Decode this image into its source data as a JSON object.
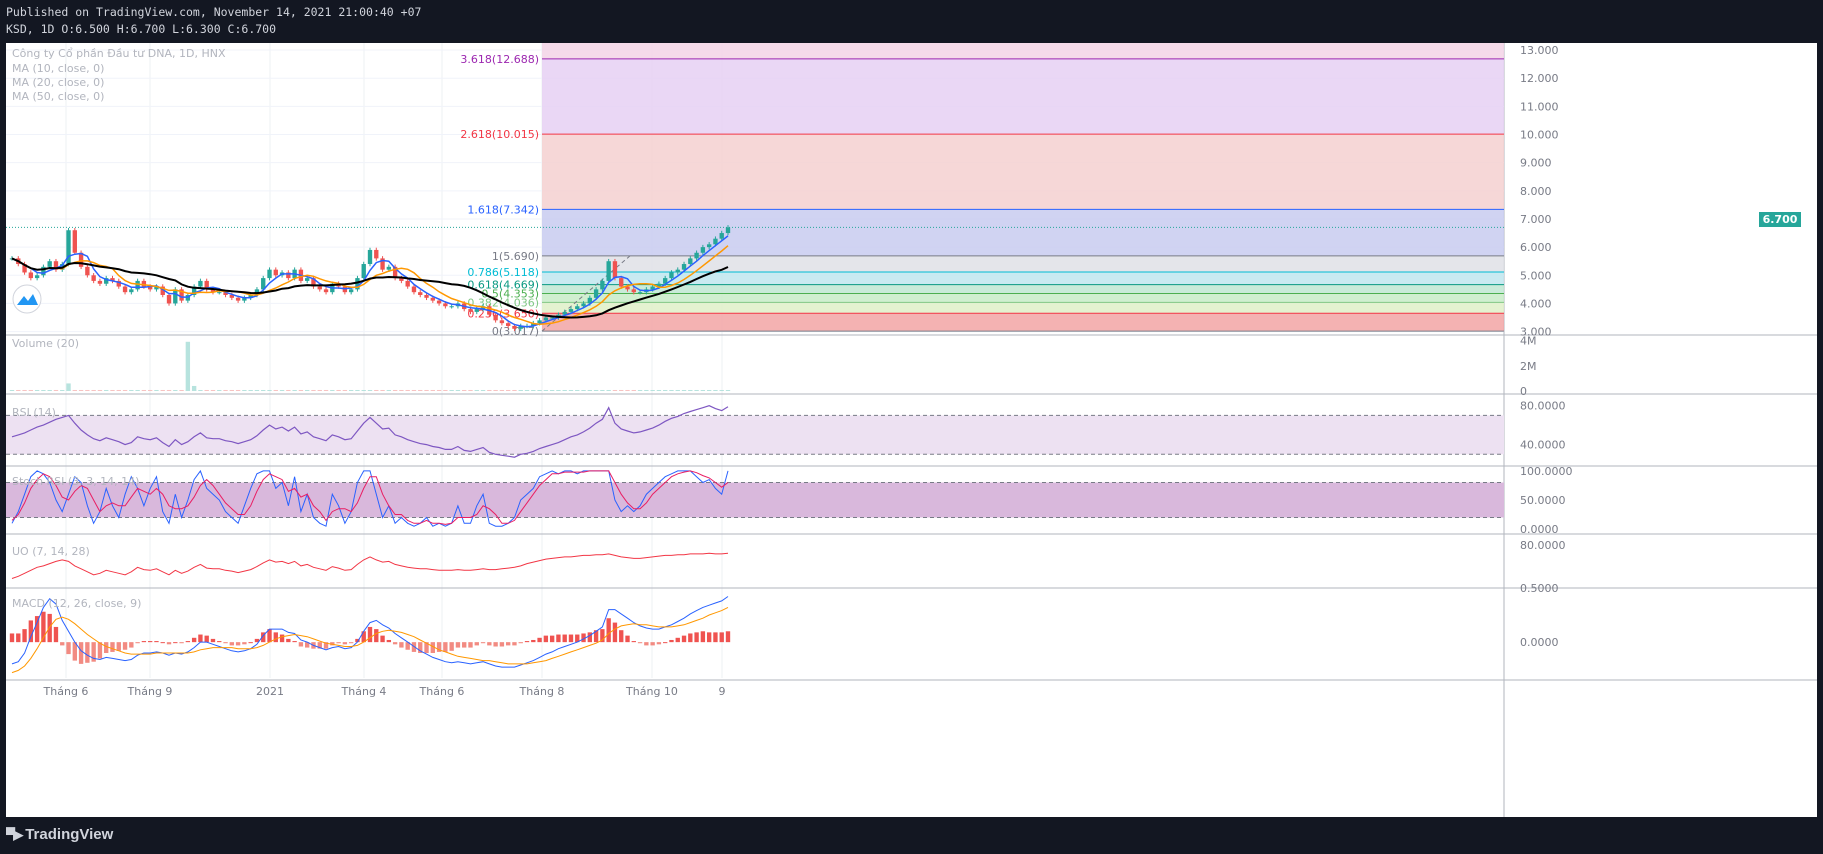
{
  "header": {
    "published": "Published on TradingView.com, November 14, 2021 21:00:40 +07",
    "ohlc": "KSD, 1D O:6.500 H:6.700 L:6.300 C:6.700"
  },
  "branding": {
    "label": "TradingView",
    "icon": "tradingview-logo-icon"
  },
  "colors": {
    "background": "#131722",
    "chart_bg": "#ffffff",
    "up": "#26a69a",
    "down": "#ef5350",
    "ma10": "#2962ff",
    "ma20": "#ff9800",
    "ma50": "#000000",
    "rsi": "#7e57c2",
    "macd": "#2962ff",
    "signal": "#ff9800",
    "uo": "#f23645"
  },
  "price_pane": {
    "legend": [
      "Công ty Cổ phần Đầu tư DNA, 1D, HNX",
      "MA (10, close, 0)",
      "MA (20, close, 0)",
      "MA (50, close, 0)"
    ],
    "last_price_label": "6.700"
  },
  "volume_pane": {
    "legend": "Volume (20)"
  },
  "rsi_pane": {
    "legend": "RSI (14)"
  },
  "stoch_pane": {
    "legend": "Stoch RSI (3, 3, 14, 14)"
  },
  "uo_pane": {
    "legend": "UO (7, 14, 28)"
  },
  "macd_pane": {
    "legend": "MACD (12, 26, close, 9)"
  },
  "chart_data": {
    "type": "candlestick",
    "symbol": "KSD",
    "interval": "1D",
    "x_ticks": [
      "Tháng 6",
      "Tháng 9",
      "2021",
      "Tháng 4",
      "Tháng 6",
      "Tháng 8",
      "Tháng 10",
      "9"
    ],
    "price_axis": [
      "13.000",
      "12.000",
      "11.000",
      "10.000",
      "9.000",
      "8.000",
      "7.000",
      "6.000",
      "5.000",
      "4.000",
      "3.000"
    ],
    "ylim": [
      2.95,
      13.25
    ],
    "close_series": [
      5.6,
      5.4,
      5.1,
      4.9,
      5.0,
      5.3,
      5.5,
      5.2,
      5.4,
      6.6,
      5.8,
      5.3,
      5.0,
      4.8,
      4.7,
      4.9,
      4.8,
      4.6,
      4.4,
      4.5,
      4.8,
      4.6,
      4.5,
      4.6,
      4.3,
      4.0,
      4.5,
      4.1,
      4.3,
      4.6,
      4.8,
      4.5,
      4.4,
      4.4,
      4.3,
      4.2,
      4.1,
      4.2,
      4.3,
      4.5,
      4.9,
      5.2,
      5.0,
      5.1,
      4.9,
      5.2,
      4.8,
      4.9,
      4.6,
      4.5,
      4.4,
      4.7,
      4.6,
      4.4,
      4.5,
      4.9,
      5.4,
      5.9,
      5.6,
      5.2,
      5.3,
      4.9,
      4.8,
      4.6,
      4.4,
      4.3,
      4.2,
      4.1,
      4.0,
      3.9,
      3.9,
      4.0,
      3.8,
      3.7,
      3.8,
      3.9,
      3.6,
      3.4,
      3.3,
      3.2,
      3.1,
      3.2,
      3.2,
      3.3,
      3.4,
      3.5,
      3.5,
      3.6,
      3.7,
      3.8,
      3.9,
      4.0,
      4.2,
      4.5,
      4.8,
      5.5,
      4.9,
      4.6,
      4.5,
      4.4,
      4.4,
      4.5,
      4.6,
      4.7,
      4.9,
      5.1,
      5.2,
      5.4,
      5.6,
      5.8,
      6.0,
      6.1,
      6.3,
      6.5,
      6.7
    ],
    "fibonacci": {
      "levels": [
        {
          "ratio": "0",
          "label": "0(3.017)",
          "price": 3.017,
          "line": "#787b86",
          "fill": "#f2a5a5"
        },
        {
          "ratio": "0.236",
          "label": "0.236(3.650)",
          "price": 3.65,
          "line": "#f23645",
          "fill": "#dff0c8"
        },
        {
          "ratio": "0.382",
          "label": "0.382(4.036)",
          "price": 4.036,
          "line": "#81c784",
          "fill": "#c8ecc8"
        },
        {
          "ratio": "0.5",
          "label": "0.5(4.353)",
          "price": 4.353,
          "line": "#4caf50",
          "fill": "#bfe8d2"
        },
        {
          "ratio": "0.618",
          "label": "0.618(4.669)",
          "price": 4.669,
          "line": "#089981",
          "fill": "#bfe6ee"
        },
        {
          "ratio": "0.786",
          "label": "0.786(5.118)",
          "price": 5.118,
          "line": "#00bcd4",
          "fill": "#dfe0e6"
        },
        {
          "ratio": "1",
          "label": "1(5.690)",
          "price": 5.69,
          "line": "#787b86",
          "fill": "#c8cbf0"
        },
        {
          "ratio": "1.618",
          "label": "1.618(7.342)",
          "price": 7.342,
          "line": "#2962ff",
          "fill": "#f5d0d0"
        },
        {
          "ratio": "2.618",
          "label": "2.618(10.015)",
          "price": 10.015,
          "line": "#f23645",
          "fill": "#e6d0f3"
        },
        {
          "ratio": "3.618",
          "label": "3.618(12.688)",
          "price": 12.688,
          "line": "#9c27b0",
          "fill": "#f3d4e6"
        }
      ]
    },
    "volume_axis": [
      "4M",
      "2M",
      "0"
    ],
    "volume_spikes": [
      {
        "index": 9,
        "value": 0.6
      },
      {
        "index": 28,
        "value": 3.9
      },
      {
        "index": 29,
        "value": 0.4
      }
    ],
    "rsi": {
      "axis": [
        "80.0000",
        "40.0000"
      ],
      "bands": [
        70,
        30
      ],
      "ylim": [
        20,
        90
      ],
      "values": [
        48,
        50,
        52,
        55,
        58,
        60,
        63,
        66,
        68,
        70,
        62,
        55,
        50,
        46,
        44,
        47,
        45,
        43,
        40,
        42,
        48,
        46,
        45,
        47,
        42,
        38,
        45,
        40,
        43,
        48,
        52,
        47,
        46,
        46,
        44,
        43,
        41,
        43,
        45,
        49,
        55,
        60,
        56,
        58,
        54,
        58,
        51,
        53,
        48,
        46,
        44,
        50,
        48,
        45,
        46,
        54,
        62,
        68,
        62,
        56,
        57,
        50,
        48,
        45,
        43,
        41,
        40,
        38,
        37,
        35,
        35,
        38,
        34,
        33,
        35,
        37,
        32,
        30,
        29,
        28,
        27,
        30,
        31,
        33,
        36,
        38,
        40,
        42,
        45,
        48,
        50,
        53,
        57,
        62,
        66,
        78,
        62,
        56,
        54,
        52,
        53,
        55,
        57,
        60,
        64,
        67,
        69,
        72,
        74,
        76,
        78,
        80,
        77,
        75,
        79
      ]
    },
    "stoch_rsi": {
      "axis": [
        "100.0000",
        "50.0000",
        "0.0000"
      ],
      "bands": [
        80,
        20
      ],
      "ylim": [
        -5,
        105
      ],
      "k": [
        10,
        30,
        60,
        90,
        100,
        95,
        80,
        50,
        30,
        60,
        90,
        80,
        40,
        10,
        30,
        70,
        40,
        20,
        60,
        90,
        70,
        40,
        70,
        90,
        30,
        10,
        60,
        20,
        50,
        85,
        100,
        70,
        60,
        50,
        30,
        20,
        10,
        40,
        70,
        95,
        100,
        100,
        70,
        80,
        40,
        90,
        30,
        60,
        20,
        10,
        5,
        60,
        40,
        10,
        30,
        80,
        100,
        100,
        60,
        20,
        40,
        10,
        20,
        10,
        5,
        10,
        20,
        5,
        10,
        5,
        10,
        40,
        10,
        10,
        40,
        60,
        10,
        5,
        5,
        10,
        20,
        50,
        60,
        70,
        90,
        95,
        100,
        95,
        100,
        100,
        95,
        100,
        100,
        100,
        100,
        100,
        50,
        30,
        40,
        30,
        40,
        60,
        70,
        80,
        90,
        95,
        100,
        100,
        100,
        90,
        80,
        85,
        70,
        60,
        100
      ],
      "d": [
        15,
        25,
        45,
        70,
        85,
        95,
        90,
        75,
        55,
        50,
        65,
        75,
        70,
        50,
        30,
        40,
        45,
        40,
        40,
        55,
        70,
        65,
        60,
        70,
        60,
        40,
        35,
        35,
        40,
        55,
        75,
        85,
        75,
        60,
        45,
        35,
        25,
        25,
        40,
        65,
        85,
        95,
        90,
        85,
        65,
        70,
        55,
        60,
        40,
        30,
        15,
        30,
        35,
        35,
        30,
        45,
        70,
        90,
        90,
        60,
        40,
        25,
        25,
        15,
        10,
        10,
        15,
        10,
        10,
        8,
        10,
        20,
        20,
        20,
        25,
        40,
        35,
        25,
        10,
        10,
        15,
        30,
        45,
        60,
        75,
        85,
        95,
        95,
        98,
        98,
        98,
        98,
        100,
        100,
        100,
        100,
        80,
        60,
        45,
        35,
        35,
        45,
        60,
        70,
        80,
        90,
        95,
        98,
        100,
        97,
        92,
        88,
        80,
        72,
        80
      ]
    },
    "uo": {
      "axis": [
        "80.0000"
      ],
      "ylim": [
        25,
        92
      ],
      "values": [
        35,
        38,
        42,
        46,
        50,
        52,
        55,
        58,
        60,
        58,
        52,
        48,
        44,
        40,
        42,
        46,
        44,
        42,
        40,
        44,
        50,
        47,
        46,
        48,
        44,
        40,
        46,
        42,
        45,
        50,
        54,
        49,
        48,
        48,
        46,
        45,
        43,
        45,
        47,
        51,
        56,
        60,
        57,
        58,
        55,
        58,
        52,
        54,
        50,
        48,
        46,
        51,
        49,
        46,
        47,
        54,
        60,
        64,
        60,
        57,
        58,
        54,
        52,
        50,
        49,
        48,
        48,
        47,
        46,
        46,
        46,
        47,
        46,
        46,
        47,
        48,
        47,
        47,
        48,
        49,
        50,
        52,
        55,
        57,
        59,
        61,
        62,
        63,
        64,
        64,
        65,
        66,
        66,
        67,
        67,
        68,
        66,
        64,
        63,
        62,
        62,
        63,
        64,
        65,
        66,
        66,
        67,
        67,
        68,
        68,
        68,
        69,
        68,
        68,
        69
      ]
    },
    "macd": {
      "axis": [
        "0.5000",
        "0.0000"
      ],
      "ylim": [
        -0.33,
        0.48
      ],
      "macd": [
        -0.2,
        -0.18,
        -0.1,
        0.05,
        0.18,
        0.32,
        0.4,
        0.35,
        0.2,
        0.1,
        0.0,
        -0.08,
        -0.12,
        -0.15,
        -0.16,
        -0.14,
        -0.15,
        -0.16,
        -0.17,
        -0.16,
        -0.12,
        -0.1,
        -0.1,
        -0.09,
        -0.1,
        -0.12,
        -0.1,
        -0.11,
        -0.09,
        -0.05,
        0.0,
        0.0,
        -0.02,
        -0.04,
        -0.06,
        -0.08,
        -0.09,
        -0.08,
        -0.06,
        -0.02,
        0.06,
        0.12,
        0.12,
        0.12,
        0.09,
        0.08,
        0.02,
        0.0,
        -0.03,
        -0.05,
        -0.07,
        -0.05,
        -0.04,
        -0.06,
        -0.05,
        0.0,
        0.1,
        0.18,
        0.2,
        0.16,
        0.13,
        0.08,
        0.04,
        0.0,
        -0.04,
        -0.08,
        -0.11,
        -0.14,
        -0.16,
        -0.18,
        -0.19,
        -0.18,
        -0.19,
        -0.2,
        -0.19,
        -0.18,
        -0.2,
        -0.22,
        -0.23,
        -0.23,
        -0.23,
        -0.21,
        -0.19,
        -0.17,
        -0.14,
        -0.11,
        -0.09,
        -0.06,
        -0.04,
        -0.02,
        0.0,
        0.03,
        0.06,
        0.1,
        0.14,
        0.3,
        0.3,
        0.26,
        0.22,
        0.18,
        0.15,
        0.13,
        0.12,
        0.12,
        0.14,
        0.16,
        0.19,
        0.22,
        0.26,
        0.29,
        0.32,
        0.34,
        0.36,
        0.38,
        0.42
      ],
      "signal": [
        -0.28,
        -0.26,
        -0.22,
        -0.15,
        -0.06,
        0.04,
        0.14,
        0.21,
        0.23,
        0.21,
        0.17,
        0.12,
        0.07,
        0.03,
        -0.01,
        -0.04,
        -0.06,
        -0.08,
        -0.1,
        -0.11,
        -0.11,
        -0.11,
        -0.11,
        -0.1,
        -0.1,
        -0.1,
        -0.1,
        -0.1,
        -0.1,
        -0.09,
        -0.07,
        -0.06,
        -0.05,
        -0.05,
        -0.05,
        -0.05,
        -0.06,
        -0.06,
        -0.06,
        -0.05,
        -0.03,
        0.0,
        0.03,
        0.05,
        0.06,
        0.07,
        0.06,
        0.05,
        0.03,
        0.01,
        -0.01,
        -0.02,
        -0.03,
        -0.04,
        -0.04,
        -0.03,
        0.0,
        0.04,
        0.08,
        0.1,
        0.11,
        0.1,
        0.09,
        0.07,
        0.05,
        0.02,
        -0.01,
        -0.04,
        -0.07,
        -0.09,
        -0.11,
        -0.13,
        -0.14,
        -0.15,
        -0.16,
        -0.17,
        -0.17,
        -0.18,
        -0.19,
        -0.2,
        -0.2,
        -0.2,
        -0.2,
        -0.19,
        -0.18,
        -0.17,
        -0.15,
        -0.13,
        -0.11,
        -0.09,
        -0.07,
        -0.05,
        -0.03,
        -0.01,
        0.02,
        0.08,
        0.12,
        0.15,
        0.16,
        0.17,
        0.16,
        0.16,
        0.15,
        0.14,
        0.14,
        0.14,
        0.15,
        0.16,
        0.18,
        0.2,
        0.22,
        0.25,
        0.27,
        0.29,
        0.32
      ]
    }
  }
}
